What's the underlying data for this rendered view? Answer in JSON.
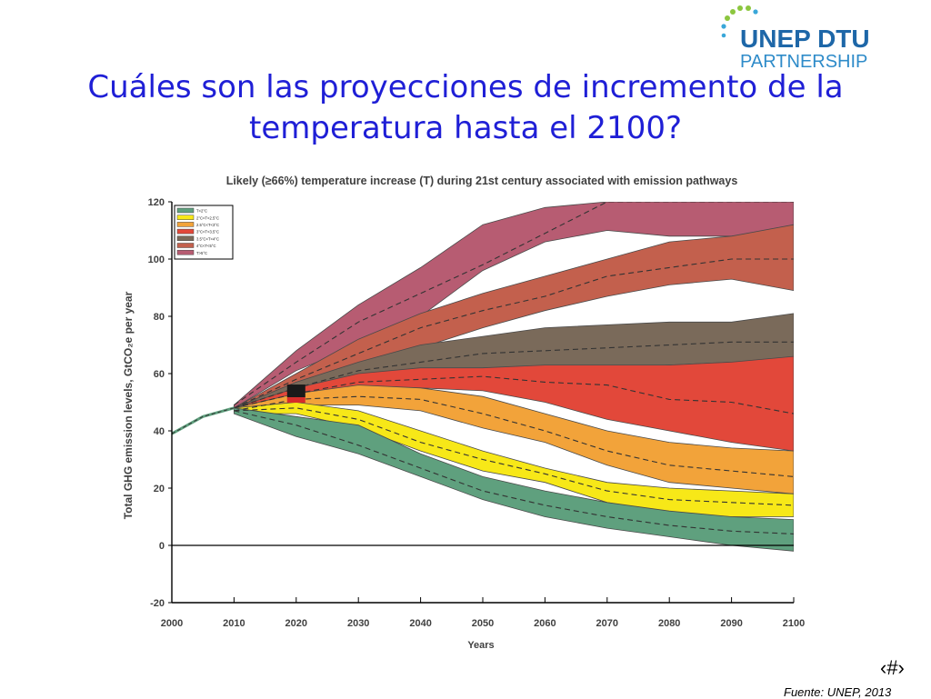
{
  "slide": {
    "title": "Cuáles son las proyecciones de incremento de la temperatura hasta el 2100?",
    "number": "‹#›",
    "source": "Fuente: UNEP, 2013"
  },
  "logo": {
    "line1": "UNEP DTU",
    "line2": "PARTNERSHIP"
  },
  "colors": {
    "title": "#1f1fd6",
    "logo_text": "#1e67a8",
    "logo_sub": "#2e8bc9",
    "bands": [
      "#5fa07e",
      "#f7e818",
      "#f2a33a",
      "#e2483a",
      "#7a6a5a",
      "#c3604d",
      "#b75c72"
    ]
  },
  "chart_data": {
    "type": "area",
    "title": "Likely (≥66%) temperature increase (T) during 21st century associated with emission pathways",
    "xlabel": "Years",
    "ylabel": "Total GHG emission levels, GtCO₂e per year",
    "xlim": [
      2000,
      2100
    ],
    "ylim": [
      -20,
      120
    ],
    "xticks": [
      2000,
      2010,
      2020,
      2030,
      2040,
      2050,
      2060,
      2070,
      2080,
      2090,
      2100
    ],
    "yticks": [
      -20,
      0,
      20,
      40,
      60,
      80,
      100,
      120
    ],
    "legend": [
      "T<2°C",
      "2°C<T<2.5°C",
      "2.5°C<T<3°C",
      "3°C<T<3.5°C",
      "3.5°C<T<4°C",
      "4°C<T<5°C",
      "T>5°C"
    ],
    "legend_position": "top-left",
    "history": {
      "x": [
        2000,
        2005,
        2010
      ],
      "y": [
        39,
        45,
        48
      ]
    },
    "marker_2020": {
      "x": 2020,
      "y": 53
    },
    "series": [
      {
        "name": "T<2°C",
        "x": [
          2010,
          2020,
          2030,
          2040,
          2050,
          2060,
          2070,
          2080,
          2090,
          2100
        ],
        "upper": [
          48,
          45,
          42,
          32,
          24,
          19,
          15,
          12,
          10,
          9
        ],
        "median": [
          47,
          42,
          35,
          27,
          19,
          14,
          10,
          7,
          5,
          4
        ],
        "lower": [
          46,
          38,
          32,
          24,
          16,
          10,
          6,
          3,
          0,
          -2
        ]
      },
      {
        "name": "2°C<T<2.5°C",
        "x": [
          2010,
          2020,
          2030,
          2040,
          2050,
          2060,
          2070,
          2080,
          2090,
          2100
        ],
        "upper": [
          48,
          50,
          47,
          40,
          33,
          27,
          22,
          20,
          19,
          18
        ],
        "median": [
          47,
          48,
          44,
          36,
          30,
          25,
          19,
          16,
          15,
          14
        ],
        "lower": [
          46,
          46,
          41,
          33,
          26,
          22,
          15,
          11,
          10,
          10
        ]
      },
      {
        "name": "2.5°C<T<3°C",
        "x": [
          2010,
          2020,
          2030,
          2040,
          2050,
          2060,
          2070,
          2080,
          2090,
          2100
        ],
        "upper": [
          48,
          53,
          56,
          55,
          52,
          46,
          40,
          36,
          34,
          33
        ],
        "median": [
          47,
          51,
          52,
          51,
          46,
          40,
          33,
          28,
          26,
          24
        ],
        "lower": [
          46,
          49,
          49,
          47,
          41,
          36,
          28,
          22,
          20,
          18
        ]
      },
      {
        "name": "3°C<T<3.5°C",
        "x": [
          2010,
          2020,
          2030,
          2040,
          2050,
          2060,
          2070,
          2080,
          2090,
          2100
        ],
        "upper": [
          48,
          55,
          60,
          62,
          62,
          63,
          63,
          63,
          64,
          66
        ],
        "median": [
          48,
          53,
          57,
          58,
          59,
          57,
          56,
          51,
          50,
          46
        ],
        "lower": [
          48,
          51,
          54,
          55,
          54,
          50,
          44,
          40,
          36,
          33
        ]
      },
      {
        "name": "3.5°C<T<4°C",
        "x": [
          2010,
          2020,
          2030,
          2040,
          2050,
          2060,
          2070,
          2080,
          2090,
          2100
        ],
        "upper": [
          48,
          57,
          64,
          70,
          73,
          76,
          77,
          78,
          78,
          81
        ],
        "median": [
          48,
          55,
          61,
          64,
          67,
          68,
          69,
          70,
          71,
          71
        ],
        "lower": [
          48,
          53,
          58,
          60,
          61,
          62,
          62,
          63,
          64,
          64
        ]
      },
      {
        "name": "4°C<T<5°C",
        "x": [
          2010,
          2020,
          2030,
          2040,
          2050,
          2060,
          2070,
          2080,
          2090,
          2100
        ],
        "upper": [
          48,
          60,
          72,
          81,
          88,
          94,
          100,
          106,
          108,
          112
        ],
        "median": [
          48,
          58,
          67,
          76,
          82,
          87,
          94,
          97,
          100,
          100
        ],
        "lower": [
          48,
          56,
          63,
          69,
          76,
          82,
          87,
          91,
          93,
          89
        ]
      },
      {
        "name": "T>5°C",
        "x": [
          2010,
          2020,
          2030,
          2040,
          2050,
          2060,
          2070,
          2080,
          2090,
          2100
        ],
        "upper": [
          49,
          68,
          84,
          97,
          112,
          118,
          120,
          120,
          120,
          120
        ],
        "median": [
          49,
          64,
          78,
          88,
          98,
          109,
          120,
          120,
          120,
          120
        ],
        "lower": [
          48,
          61,
          70,
          80,
          96,
          106,
          110,
          108,
          108,
          108
        ]
      }
    ]
  }
}
